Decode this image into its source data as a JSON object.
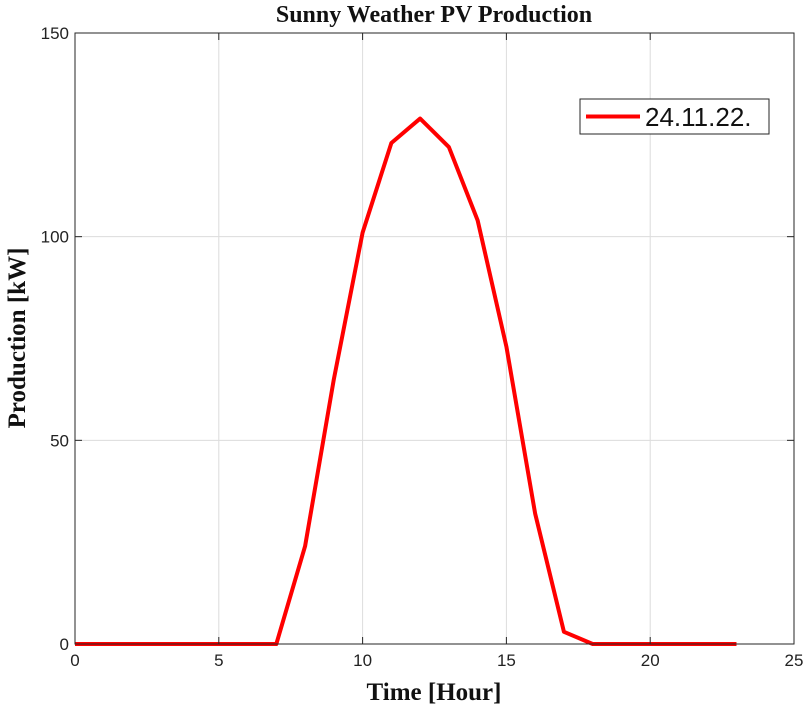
{
  "chart_data": {
    "type": "line",
    "title": "Sunny Weather PV Production",
    "xlabel": "Time [Hour]",
    "ylabel": "Production [kW]",
    "xlim": [
      0,
      25
    ],
    "ylim": [
      0,
      150
    ],
    "xticks": [
      0,
      5,
      10,
      15,
      20,
      25
    ],
    "yticks": [
      0,
      50,
      100,
      150
    ],
    "grid": true,
    "legend_position": "top-right",
    "series": [
      {
        "name": "24.11.22.",
        "color": "#ff0000",
        "x": [
          0,
          1,
          2,
          3,
          4,
          5,
          6,
          7,
          8,
          9,
          10,
          11,
          12,
          13,
          14,
          15,
          16,
          17,
          18,
          19,
          20,
          21,
          22,
          23
        ],
        "y": [
          0,
          0,
          0,
          0,
          0,
          0,
          0,
          0,
          24,
          65,
          101,
          123,
          129,
          122,
          104,
          73,
          32,
          3,
          0,
          0,
          0,
          0,
          0,
          0
        ]
      }
    ]
  }
}
